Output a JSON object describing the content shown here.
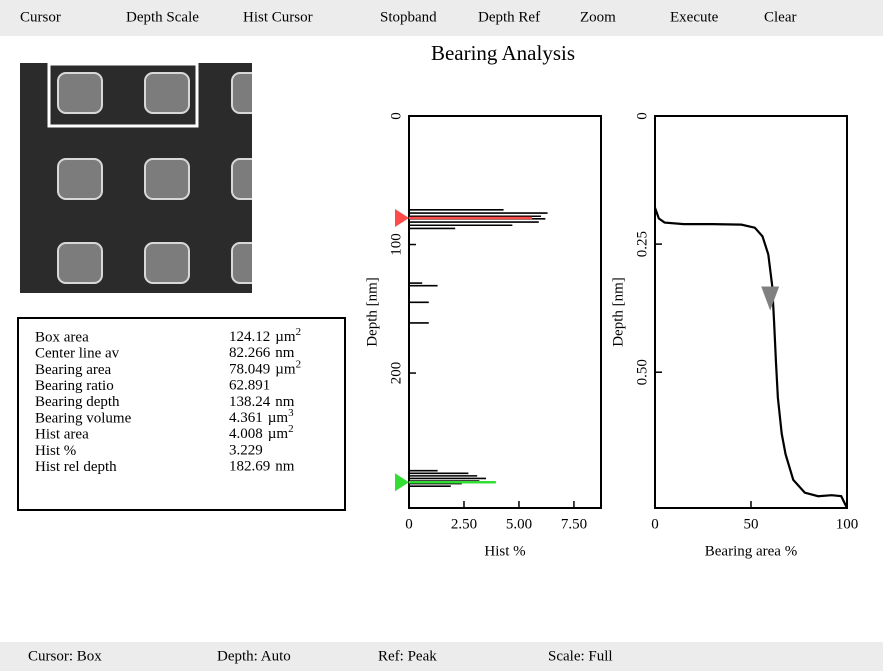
{
  "menu": [
    "Cursor",
    "Depth Scale",
    "Hist Cursor",
    "Stopband",
    "Depth Ref",
    "Zoom",
    "Execute",
    "Clear"
  ],
  "title": "Bearing Analysis",
  "stats": [
    {
      "label": "Box area",
      "value": "124.12",
      "unit": "µm",
      "exp": "2"
    },
    {
      "label": "Center line av",
      "value": "82.266",
      "unit": "nm"
    },
    {
      "label": "Bearing area",
      "value": "78.049",
      "unit": "µm",
      "exp": "2"
    },
    {
      "label": "Bearing ratio",
      "value": "62.891"
    },
    {
      "label": "Bearing depth",
      "value": "138.24",
      "unit": "nm"
    },
    {
      "label": "Bearing volume",
      "value": "4.361",
      "unit": "µm",
      "exp": "3"
    },
    {
      "label": "Hist area",
      "value": "4.008",
      "unit": "µm",
      "exp": "2"
    },
    {
      "label": "Hist %",
      "value": "3.229"
    },
    {
      "label": "Hist rel  depth",
      "value": "182.69",
      "unit": "nm"
    }
  ],
  "histogram": {
    "type": "bar",
    "x_label": "Hist %",
    "y_label": "Depth [nm]",
    "xlim": [
      0,
      8.73
    ],
    "ylim": [
      0,
      305
    ],
    "xticks": [
      0,
      {
        "value": 2.5,
        "label": "2.50"
      },
      {
        "value": 5,
        "label": "5.00"
      },
      {
        "value": 7.5,
        "label": "7.50"
      }
    ],
    "yticks": [
      0,
      100,
      200
    ],
    "depths": [
      73,
      75.5,
      78,
      80,
      82.5,
      85,
      87.5,
      130,
      132,
      145,
      161,
      276,
      278,
      280,
      282,
      284,
      286,
      288
    ],
    "values": [
      4.3,
      6.3,
      6.0,
      6.2,
      5.9,
      4.7,
      2.1,
      0.6,
      1.3,
      0.9,
      0.9,
      1.3,
      2.7,
      3.1,
      3.5,
      3.2,
      2.4,
      1.9
    ],
    "color": "#000000",
    "cursors": [
      {
        "depth": 79.4,
        "value": 5.6,
        "color": "#ff4a4a"
      },
      {
        "depth": 285,
        "value": 3.95,
        "color": "#33dd33"
      }
    ]
  },
  "bearing": {
    "type": "line",
    "x_label": "Bearing area %",
    "y_label": "Depth [nm]",
    "xlim": [
      0,
      100
    ],
    "ylim": [
      0,
      0.765
    ],
    "xticks": [
      0,
      50,
      100
    ],
    "yticks": [
      0,
      0.25,
      {
        "value": 0.5,
        "label": "0.50"
      }
    ],
    "x": [
      0,
      2,
      5,
      15,
      30,
      45,
      52,
      56,
      59,
      61,
      62,
      63,
      64,
      66,
      68,
      72,
      78,
      85,
      92,
      97,
      100
    ],
    "y": [
      0.179,
      0.2,
      0.208,
      0.211,
      0.211,
      0.212,
      0.218,
      0.235,
      0.27,
      0.33,
      0.4,
      0.48,
      0.55,
      0.62,
      0.66,
      0.71,
      0.735,
      0.742,
      0.74,
      0.742,
      0.765
    ],
    "color": "#000000",
    "marker": {
      "x": 60,
      "y": 0.36,
      "color": "#808080"
    }
  },
  "status": [
    "Cursor: Box",
    "Depth: Auto",
    "Ref: Peak",
    "Scale: Full"
  ]
}
